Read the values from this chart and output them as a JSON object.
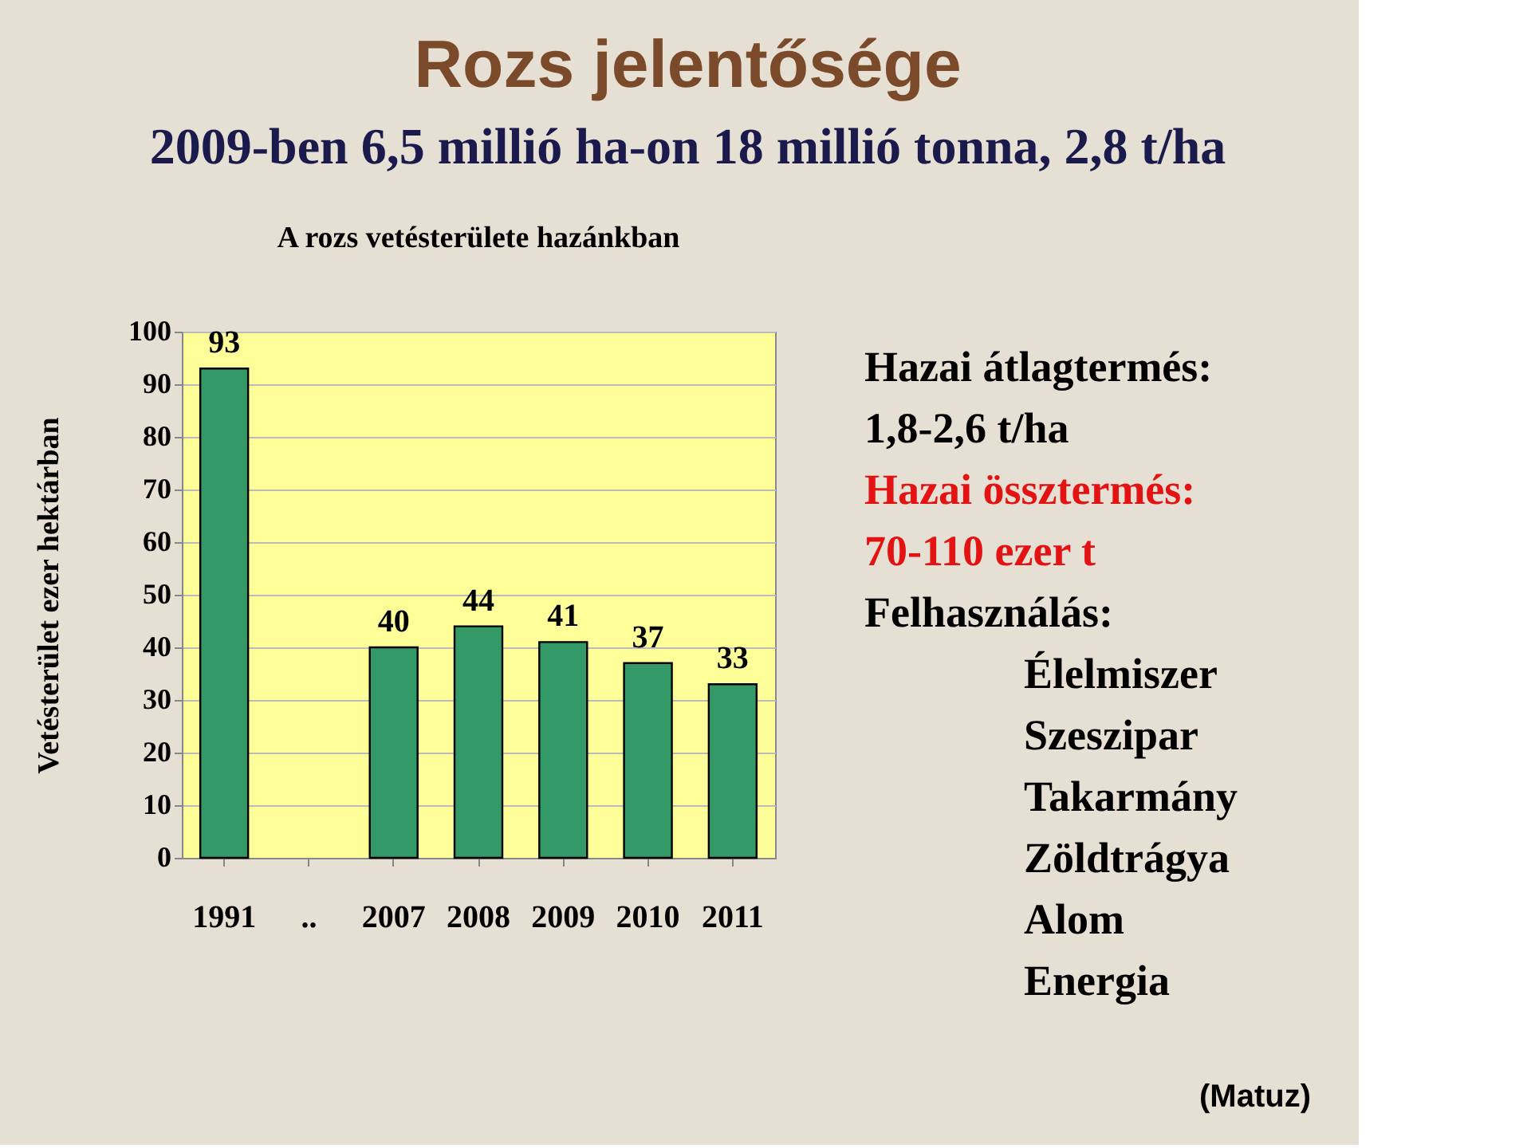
{
  "chart_data": {
    "type": "bar",
    "title": "Rozs jelentősége",
    "subtitle": "2009-ben 6,5 millió ha-on 18 millió tonna, 2,8 t/ha",
    "ylabel": "Vetésterület ezer hektárban",
    "categories": [
      "1991",
      "..",
      "2007",
      "2008",
      "2009",
      "2010",
      "2011"
    ],
    "values": [
      93,
      null,
      40,
      44,
      41,
      37,
      33
    ],
    "color": "#339966",
    "ylim": [
      0,
      100
    ],
    "yticks": [
      0,
      10,
      20,
      30,
      40,
      50,
      60,
      70,
      80,
      90,
      100
    ],
    "grid": "y",
    "data_labels": true,
    "annotations": [
      "A rozs vetésterülete hazánkban",
      "Hazai átlagtermés:",
      "1,8-2,6 t/ha",
      "Hazai össztermés:",
      "70-110 ezer t",
      "Felhasználás:",
      "Élelmiszer",
      "Szeszipar",
      "Takarmány",
      "Zöldtrágya",
      "Alom",
      "Energia",
      "(Matuz)"
    ]
  }
}
